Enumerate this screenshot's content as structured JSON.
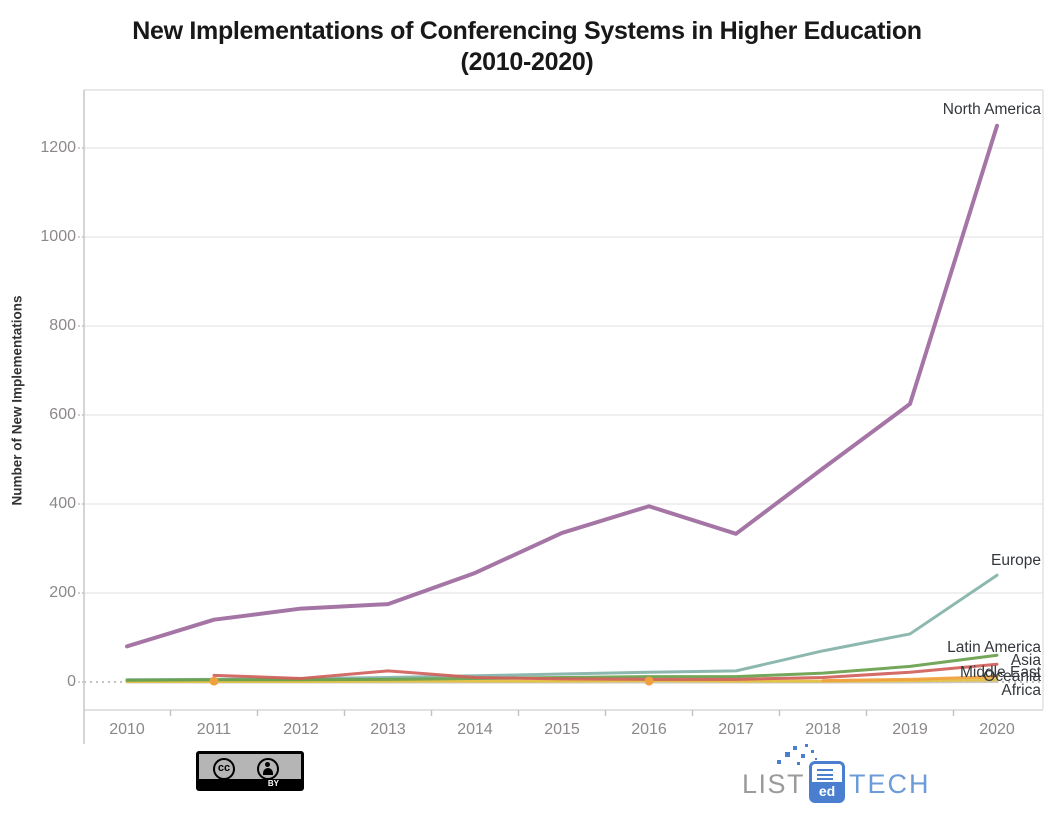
{
  "title": {
    "line1": "New Implementations of Conferencing Systems in Higher Education",
    "line2": "(2010-2020)"
  },
  "y_axis": {
    "label": "Number of New Implementations",
    "ticks": [
      0,
      200,
      400,
      600,
      800,
      1000,
      1200
    ]
  },
  "x_axis": {
    "ticks": [
      "2010",
      "2011",
      "2012",
      "2013",
      "2014",
      "2015",
      "2016",
      "2017",
      "2018",
      "2019",
      "2020"
    ]
  },
  "chart_data": {
    "type": "line",
    "title": "New Implementations of Conferencing Systems in Higher Education (2010-2020)",
    "xlabel": "",
    "ylabel": "Number of New Implementations",
    "x": [
      2010,
      2011,
      2012,
      2013,
      2014,
      2015,
      2016,
      2017,
      2018,
      2019,
      2020
    ],
    "ylim": [
      0,
      1270
    ],
    "grid": true,
    "legend_position": "line-end-labels",
    "zero_line_style": "dotted",
    "series": [
      {
        "name": "Africa",
        "color": "#c9c4c0",
        "values": [
          0,
          0,
          0,
          0,
          0,
          0,
          0,
          0,
          0,
          0,
          1
        ]
      },
      {
        "name": "Oceania",
        "color": "#e5c13f",
        "values": [
          1,
          1,
          1,
          2,
          2,
          2,
          3,
          2,
          2,
          3,
          5
        ]
      },
      {
        "name": "Europe",
        "color": "#83b2a9",
        "values": [
          5,
          6,
          8,
          10,
          14,
          18,
          22,
          25,
          70,
          108,
          240
        ]
      },
      {
        "name": "Latin America",
        "color": "#68a04c",
        "values": [
          4,
          5,
          5,
          6,
          8,
          10,
          12,
          12,
          20,
          35,
          60
        ]
      },
      {
        "name": "Asia",
        "color": "#d0605a",
        "values": [
          null,
          15,
          8,
          25,
          10,
          7,
          6,
          6,
          10,
          22,
          40
        ]
      },
      {
        "name": "Middle East",
        "color": "#f0a13f",
        "values": [
          null,
          2,
          null,
          null,
          null,
          null,
          2,
          null,
          3,
          6,
          12
        ]
      },
      {
        "name": "North America",
        "color": "#9d6a9d",
        "values": [
          80,
          140,
          165,
          175,
          245,
          335,
          395,
          333,
          480,
          625,
          1250
        ]
      }
    ]
  },
  "footer": {
    "license_badge": {
      "by_label": "BY",
      "cc_label": "cc"
    },
    "logo": {
      "prefix": "LIST",
      "icon_text": "ed",
      "suffix": "TECH"
    }
  }
}
